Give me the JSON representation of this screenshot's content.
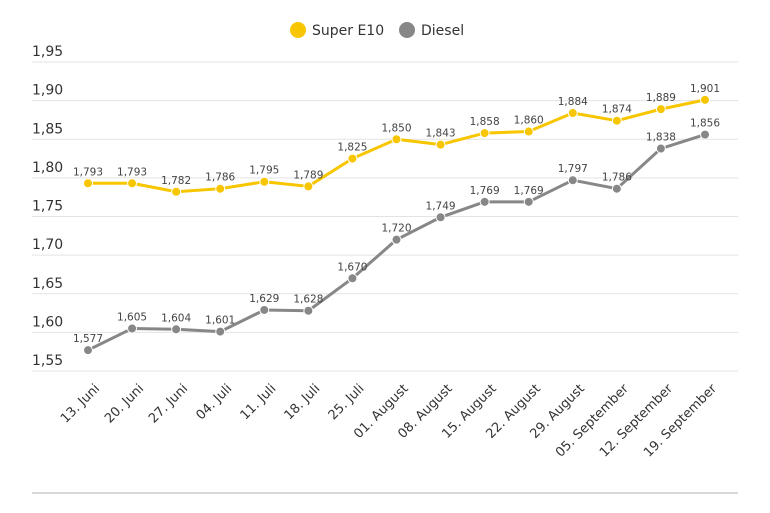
{
  "chart_data": {
    "type": "line",
    "categories": [
      "13. Juni",
      "20. Juni",
      "27. Juni",
      "04. Juli",
      "11. Juli",
      "18. Juli",
      "25. Juli",
      "01. August",
      "08. August",
      "15. August",
      "22. August",
      "29. August",
      "05. September",
      "12. September",
      "19. September"
    ],
    "series": [
      {
        "name": "Super E10",
        "color": "#f7c600",
        "values": [
          1.793,
          1.793,
          1.782,
          1.786,
          1.795,
          1.789,
          1.825,
          1.85,
          1.843,
          1.858,
          1.86,
          1.884,
          1.874,
          1.889,
          1.901
        ],
        "value_labels": [
          "1,793",
          "1,793",
          "1,782",
          "1,786",
          "1,795",
          "1,789",
          "1,825",
          "1,850",
          "1,843",
          "1,858",
          "1,860",
          "1,884",
          "1,874",
          "1,889",
          "1,901"
        ]
      },
      {
        "name": "Diesel",
        "color": "#878787",
        "values": [
          1.577,
          1.605,
          1.604,
          1.601,
          1.629,
          1.628,
          1.67,
          1.72,
          1.749,
          1.769,
          1.769,
          1.797,
          1.786,
          1.838,
          1.856
        ],
        "value_labels": [
          "1,577",
          "1,605",
          "1,604",
          "1,601",
          "1,629",
          "1,628",
          "1,670",
          "1,720",
          "1,749",
          "1,769",
          "1,769",
          "1,797",
          "1,786",
          "1,838",
          "1,856"
        ]
      }
    ],
    "ylim": [
      1.55,
      1.95
    ],
    "yticks": [
      {
        "value": 1.55,
        "label": "1,55"
      },
      {
        "value": 1.6,
        "label": "1,60"
      },
      {
        "value": 1.65,
        "label": "1,65"
      },
      {
        "value": 1.7,
        "label": "1,70"
      },
      {
        "value": 1.75,
        "label": "1,75"
      },
      {
        "value": 1.8,
        "label": "1,80"
      },
      {
        "value": 1.85,
        "label": "1,85"
      },
      {
        "value": 1.9,
        "label": "1,90"
      },
      {
        "value": 1.95,
        "label": "1,95"
      }
    ],
    "grid": true,
    "legend": "top"
  }
}
